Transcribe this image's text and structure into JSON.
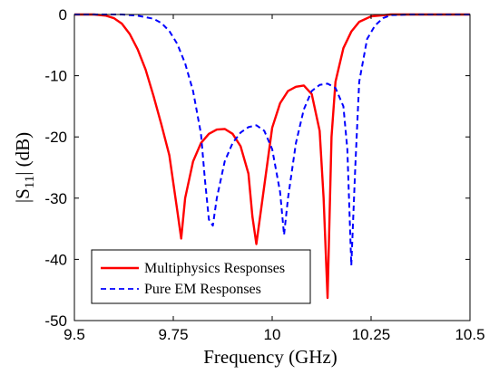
{
  "chart_data": {
    "type": "line",
    "title": "",
    "xlabel": "Frequency (GHz)",
    "ylabel_main": "|S",
    "ylabel_sub": "11",
    "ylabel_tail": "| (dB)",
    "xlim": [
      9.5,
      10.5
    ],
    "ylim": [
      -50,
      0
    ],
    "x_ticks": [
      9.5,
      9.75,
      10,
      10.25,
      10.5
    ],
    "x_tick_labels": [
      "9.5",
      "9.75",
      "10",
      "10.25",
      "10.5"
    ],
    "y_ticks": [
      0,
      -10,
      -20,
      -30,
      -40,
      -50
    ],
    "y_tick_labels": [
      "0",
      "-10",
      "-20",
      "-30",
      "-40",
      "-50"
    ],
    "grid": false,
    "legend_position": "bottom-left",
    "series": [
      {
        "name": "Multiphysics Responses",
        "color": "#ff0000",
        "dash": "solid",
        "x": [
          9.5,
          9.55,
          9.58,
          9.6,
          9.62,
          9.64,
          9.66,
          9.68,
          9.7,
          9.72,
          9.74,
          9.76,
          9.77,
          9.78,
          9.8,
          9.82,
          9.84,
          9.86,
          9.88,
          9.9,
          9.92,
          9.94,
          9.95,
          9.96,
          9.98,
          10.0,
          10.02,
          10.04,
          10.06,
          10.08,
          10.1,
          10.12,
          10.13,
          10.14,
          10.15,
          10.16,
          10.18,
          10.2,
          10.22,
          10.25,
          10.3,
          10.5
        ],
        "y": [
          0,
          0,
          -0.2,
          -0.6,
          -1.5,
          -3.2,
          -5.7,
          -9.0,
          -13.3,
          -18.0,
          -23.0,
          -32.0,
          -36.6,
          -30.0,
          -24.0,
          -21.0,
          -19.5,
          -18.8,
          -18.7,
          -19.5,
          -21.5,
          -26.0,
          -33.0,
          -37.5,
          -28.0,
          -18.5,
          -14.5,
          -12.5,
          -11.8,
          -11.6,
          -13.0,
          -19.0,
          -30.0,
          -46.3,
          -20.0,
          -11.0,
          -5.5,
          -2.8,
          -1.2,
          -0.3,
          0,
          0
        ]
      },
      {
        "name": "Pure EM Responses",
        "color": "#0000ff",
        "dash": "dashed",
        "x": [
          9.5,
          9.62,
          9.66,
          9.7,
          9.72,
          9.74,
          9.76,
          9.78,
          9.8,
          9.82,
          9.83,
          9.84,
          9.85,
          9.86,
          9.88,
          9.9,
          9.92,
          9.94,
          9.96,
          9.98,
          10.0,
          10.02,
          10.03,
          10.04,
          10.06,
          10.08,
          10.1,
          10.12,
          10.14,
          10.16,
          10.18,
          10.19,
          10.2,
          10.21,
          10.22,
          10.24,
          10.26,
          10.28,
          10.3,
          10.35,
          10.5
        ],
        "y": [
          0,
          0,
          -0.2,
          -0.7,
          -1.4,
          -2.7,
          -4.8,
          -8.0,
          -12.5,
          -19.5,
          -27.0,
          -33.5,
          -34.5,
          -30.0,
          -24.0,
          -21.0,
          -19.3,
          -18.4,
          -18.1,
          -19.0,
          -22.0,
          -29.0,
          -36.0,
          -30.0,
          -21.0,
          -15.5,
          -12.5,
          -11.5,
          -11.3,
          -12.0,
          -15.0,
          -22.0,
          -41.0,
          -25.0,
          -11.0,
          -4.0,
          -1.8,
          -0.6,
          -0.1,
          0,
          0
        ]
      }
    ]
  }
}
